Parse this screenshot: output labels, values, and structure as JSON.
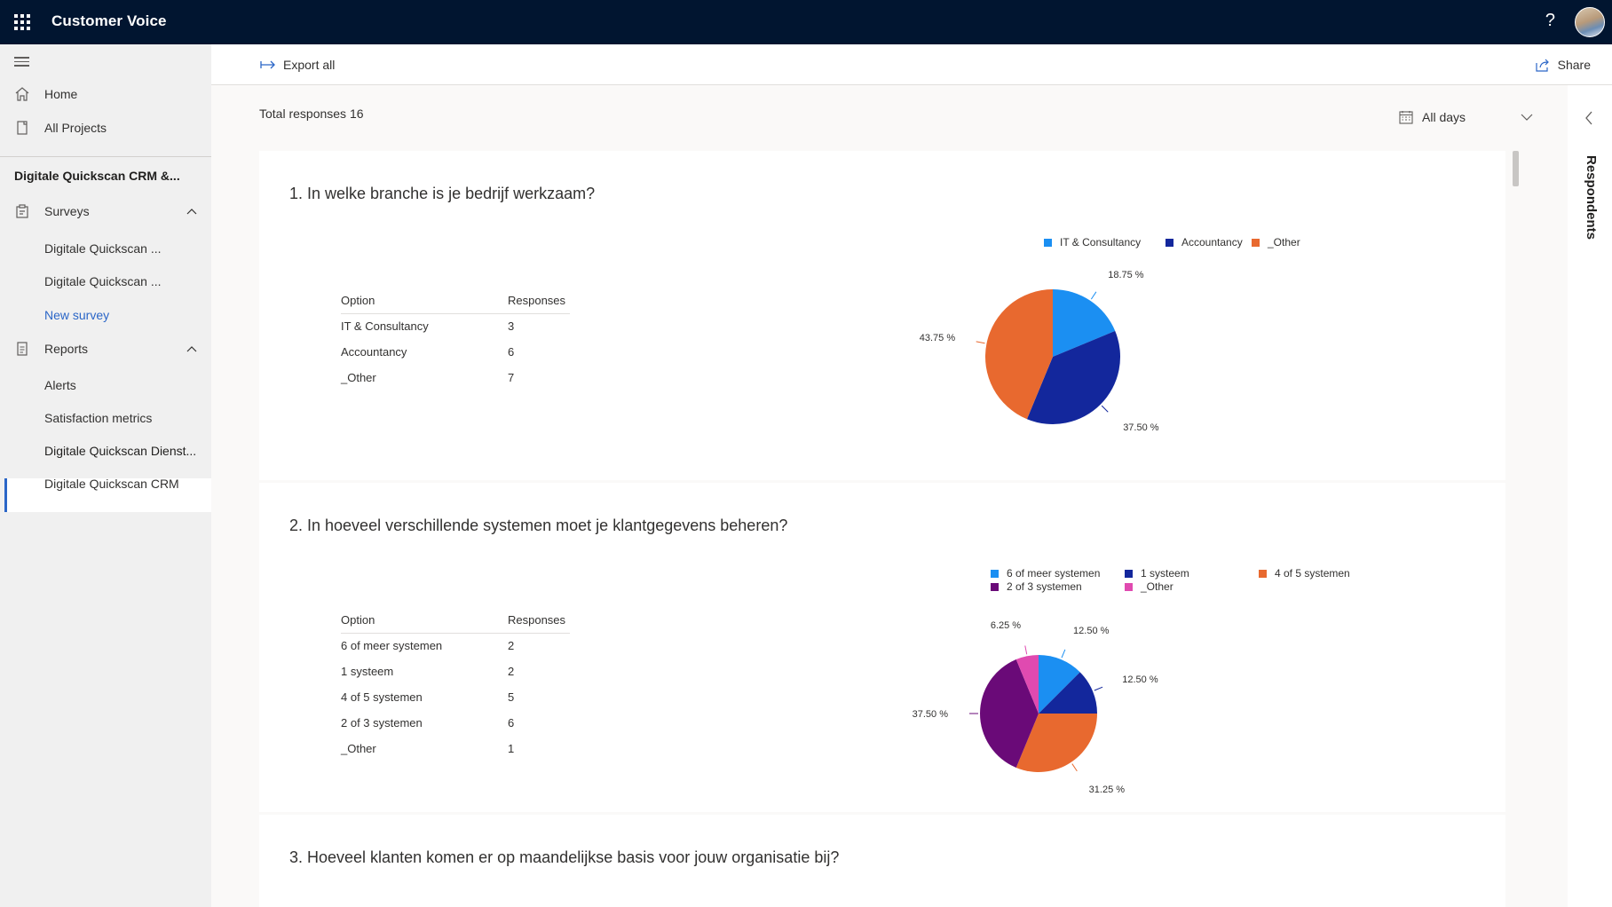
{
  "app": {
    "title": "Customer Voice",
    "help": "?"
  },
  "toolbar": {
    "export_label": "Export all",
    "share_label": "Share"
  },
  "sidebar": {
    "home": "Home",
    "all_projects": "All Projects",
    "project": "Digitale Quickscan CRM &...",
    "surveys": {
      "label": "Surveys",
      "items": [
        "Digitale Quickscan ...",
        "Digitale Quickscan ...",
        "New survey"
      ]
    },
    "reports": {
      "label": "Reports",
      "items": [
        "Alerts",
        "Satisfaction metrics",
        "Digitale Quickscan Dienst...",
        "Digitale Quickscan CRM"
      ]
    }
  },
  "summary": {
    "total_responses": "Total responses 16",
    "date_filter": "All days"
  },
  "right_panel": {
    "label": "Respondents"
  },
  "questions": [
    {
      "title": "1. In welke branche is je bedrijf werkzaam?",
      "col_option": "Option",
      "col_responses": "Responses",
      "rows": [
        {
          "option": "IT & Consultancy",
          "responses": "3"
        },
        {
          "option": "Accountancy",
          "responses": "6"
        },
        {
          "option": "_Other",
          "responses": "7"
        }
      ]
    },
    {
      "title": "2. In hoeveel verschillende systemen moet je klantgegevens beheren?",
      "col_option": "Option",
      "col_responses": "Responses",
      "rows": [
        {
          "option": "6 of meer systemen",
          "responses": "2"
        },
        {
          "option": "1 systeem",
          "responses": "2"
        },
        {
          "option": "4 of 5 systemen",
          "responses": "5"
        },
        {
          "option": "2 of 3 systemen",
          "responses": "6"
        },
        {
          "option": "_Other",
          "responses": "1"
        }
      ]
    },
    {
      "title": "3. Hoeveel klanten komen er op maandelijkse basis voor jouw organisatie bij?"
    }
  ],
  "chart_data": [
    {
      "type": "pie",
      "legend_position": "top",
      "series": [
        {
          "name": "IT & Consultancy",
          "value": 18.75,
          "label": "18.75 %",
          "color": "#1b8ff2"
        },
        {
          "name": "Accountancy",
          "value": 37.5,
          "label": "37.50 %",
          "color": "#13279c"
        },
        {
          "name": "_Other",
          "value": 43.75,
          "label": "43.75 %",
          "color": "#e8692f"
        }
      ]
    },
    {
      "type": "pie",
      "legend_position": "top",
      "series": [
        {
          "name": "6 of meer systemen",
          "value": 12.5,
          "label": "12.50 %",
          "color": "#1b8ff2"
        },
        {
          "name": "1 systeem",
          "value": 12.5,
          "label": "12.50 %",
          "color": "#13279c"
        },
        {
          "name": "4 of 5 systemen",
          "value": 31.25,
          "label": "31.25 %",
          "color": "#e8692f"
        },
        {
          "name": "2 of 3 systemen",
          "value": 37.5,
          "label": "37.50 %",
          "color": "#6a0a78"
        },
        {
          "name": "_Other",
          "value": 6.25,
          "label": "6.25 %",
          "color": "#e04ab0"
        }
      ]
    }
  ]
}
